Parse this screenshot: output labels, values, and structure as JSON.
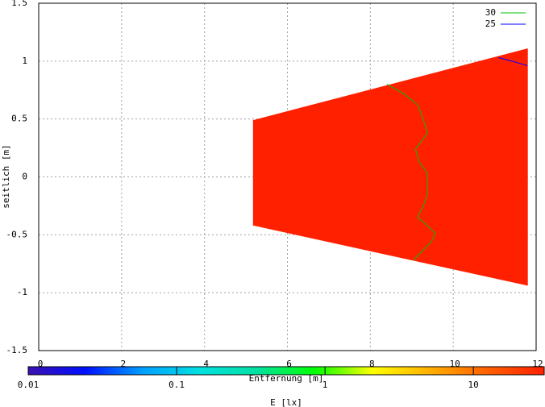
{
  "chart_data": {
    "type": "contour",
    "xlabel": "Entfernung [m]",
    "ylabel": "seitlich [m]",
    "xlim": [
      0,
      12
    ],
    "xticks": [
      0,
      2,
      4,
      6,
      8,
      10,
      12
    ],
    "ylim": [
      -1.5,
      1.5
    ],
    "yticks": [
      -1.5,
      -1,
      -0.5,
      0,
      0.5,
      1,
      1.5
    ],
    "grid": true,
    "legend": "upper right",
    "surface": {
      "color": "#ff2000",
      "x": [
        5.17,
        11.8,
        11.8,
        5.17
      ],
      "y": [
        0.49,
        1.11,
        -0.94,
        -0.42
      ]
    },
    "series": [
      {
        "name": "30",
        "color": "#00c000",
        "x": [
          8.4,
          8.8,
          9.15,
          9.32,
          9.38,
          9.09,
          9.18,
          9.38,
          9.38,
          9.28,
          9.14,
          9.28,
          9.57,
          9.47,
          9.09,
          9.05
        ],
        "y": [
          0.8,
          0.72,
          0.62,
          0.45,
          0.38,
          0.24,
          0.13,
          0.03,
          -0.15,
          -0.25,
          -0.35,
          -0.39,
          -0.49,
          -0.56,
          -0.7,
          -0.72
        ]
      },
      {
        "name": "25",
        "color": "#0000ff",
        "x": [
          11.09,
          11.52,
          11.79
        ],
        "y": [
          1.03,
          0.99,
          0.96
        ]
      }
    ],
    "colorbar": {
      "label": "E [lx]",
      "log": true,
      "lim": [
        0.01,
        30
      ],
      "ticks": [
        0.01,
        0.1,
        1,
        10
      ],
      "colors": [
        "#3a10b0",
        "#0010ff",
        "#00a0ff",
        "#00e0e0",
        "#00e0a0",
        "#00ff00",
        "#ffff00",
        "#ffb000",
        "#ff6000",
        "#ff2000"
      ]
    }
  }
}
